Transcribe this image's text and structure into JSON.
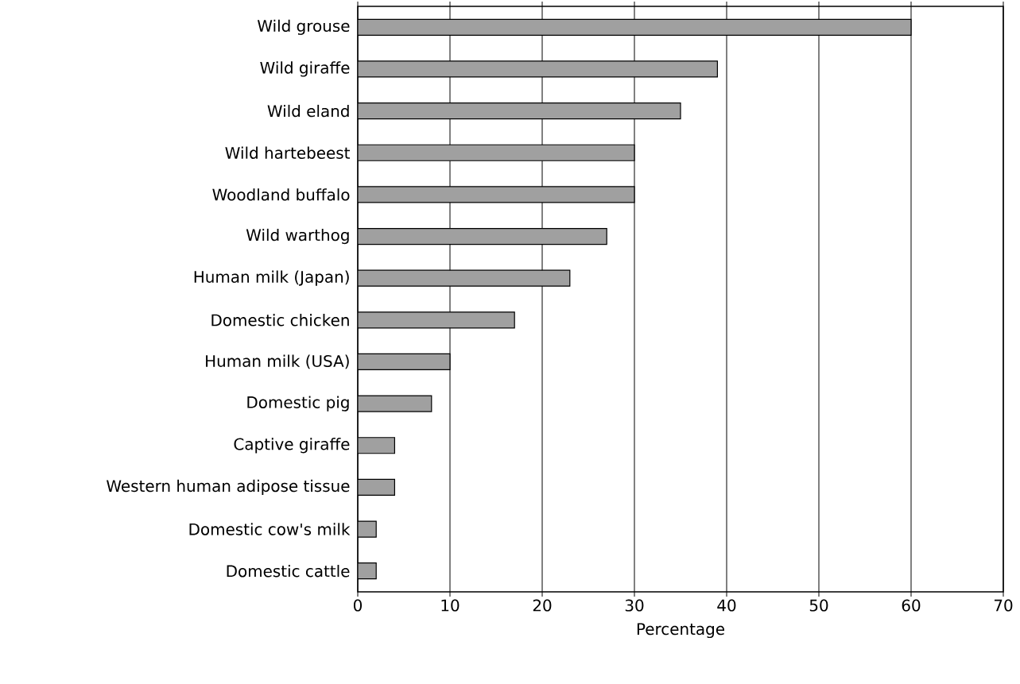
{
  "chart_data": {
    "type": "bar",
    "orientation": "horizontal",
    "xlabel": "Percentage",
    "categories": [
      "Wild grouse",
      "Wild giraffe",
      "Wild eland",
      "Wild hartebeest",
      "Woodland buffalo",
      "Wild warthog",
      "Human milk (Japan)",
      "Domestic chicken",
      "Human milk (USA)",
      "Domestic pig",
      "Captive giraffe",
      "Western human adipose tissue",
      "Domestic cow's milk",
      "Domestic cattle"
    ],
    "values": [
      60,
      39,
      35,
      30,
      30,
      27,
      23,
      17,
      10,
      8,
      4,
      4,
      2,
      2
    ],
    "color": "#a0a0a0",
    "xlim": [
      0,
      70
    ],
    "xticks": [
      0,
      10,
      20,
      30,
      40,
      50,
      60,
      70
    ],
    "grid": "x"
  }
}
